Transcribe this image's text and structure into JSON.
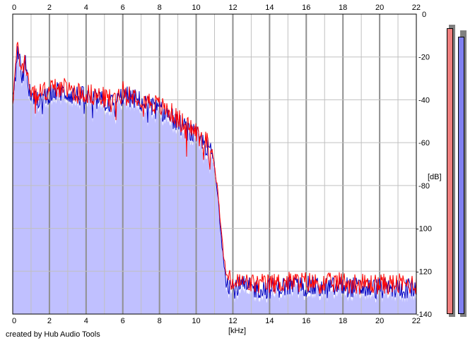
{
  "credit": "created by Hub Audio Tools",
  "colors": {
    "background": "#ffffff",
    "grid_minor": "#c0c0c0",
    "grid_major": "#909090",
    "fill": "#c0c0ff",
    "series_left": "#ff0000",
    "series_right": "#0000c0",
    "meter_left": "#f08080",
    "meter_right": "#8080f0"
  },
  "chart_data": {
    "type": "line",
    "title": "",
    "xlabel": "[kHz]",
    "ylabel": "[dB]",
    "xlim": [
      0,
      22
    ],
    "ylim": [
      -140,
      0
    ],
    "x_ticks": [
      "0",
      "2",
      "4",
      "6",
      "8",
      "10",
      "12",
      "14",
      "16",
      "18",
      "20",
      "22"
    ],
    "y_ticks": [
      "0",
      "-20",
      "-40",
      "-60",
      "-80",
      "-100",
      "-120",
      "-140"
    ],
    "grid": true,
    "x_axis_labels": "top-and-bottom",
    "y_axis_labels": "right",
    "fill_under": true,
    "series": [
      {
        "color": "#ff0000",
        "x": [
          0,
          0.1,
          0.2,
          0.3,
          0.5,
          0.7,
          0.9,
          1,
          1.2,
          1.5,
          2,
          2.5,
          3,
          3.5,
          4,
          4.5,
          5,
          5.5,
          6,
          6.5,
          7,
          7.5,
          8,
          8.5,
          9,
          9.5,
          10,
          10.3,
          10.6,
          10.9,
          11,
          11.2,
          11.4,
          11.6,
          11.8,
          12,
          12.5,
          13,
          14,
          15,
          16,
          17,
          18,
          19,
          20,
          21,
          22
        ],
        "y": [
          -40,
          -30,
          -20,
          -16,
          -26,
          -22,
          -33,
          -36,
          -38,
          -37,
          -35,
          -34,
          -35,
          -36,
          -37,
          -38,
          -39,
          -40,
          -36,
          -37,
          -39,
          -41,
          -43,
          -45,
          -49,
          -52,
          -55,
          -57,
          -60,
          -64,
          -70,
          -85,
          -105,
          -120,
          -124,
          -126,
          -125,
          -126,
          -126,
          -125,
          -125,
          -126,
          -125,
          -126,
          -126,
          -126,
          -126
        ]
      },
      {
        "color": "#0000c0",
        "x": [
          0,
          0.1,
          0.2,
          0.3,
          0.5,
          0.7,
          0.9,
          1,
          1.2,
          1.5,
          2,
          2.5,
          3,
          3.5,
          4,
          4.5,
          5,
          5.5,
          6,
          6.5,
          7,
          7.5,
          8,
          8.5,
          9,
          9.5,
          10,
          10.3,
          10.6,
          10.9,
          11,
          11.2,
          11.4,
          11.6,
          11.8,
          12,
          12.5,
          13,
          14,
          15,
          16,
          17,
          18,
          19,
          20,
          21,
          22
        ],
        "y": [
          -42,
          -32,
          -22,
          -19,
          -28,
          -24,
          -35,
          -38,
          -40,
          -39,
          -37,
          -36,
          -37,
          -38,
          -39,
          -40,
          -41,
          -42,
          -38,
          -39,
          -41,
          -43,
          -45,
          -47,
          -51,
          -54,
          -57,
          -59,
          -62,
          -66,
          -72,
          -87,
          -107,
          -122,
          -126,
          -128,
          -127,
          -128,
          -128,
          -127,
          -127,
          -128,
          -127,
          -128,
          -128,
          -128,
          -128
        ]
      }
    ],
    "level_meters": [
      {
        "color": "#f08080",
        "level_db": -3
      },
      {
        "color": "#8080f0",
        "level_db": -7
      }
    ]
  }
}
